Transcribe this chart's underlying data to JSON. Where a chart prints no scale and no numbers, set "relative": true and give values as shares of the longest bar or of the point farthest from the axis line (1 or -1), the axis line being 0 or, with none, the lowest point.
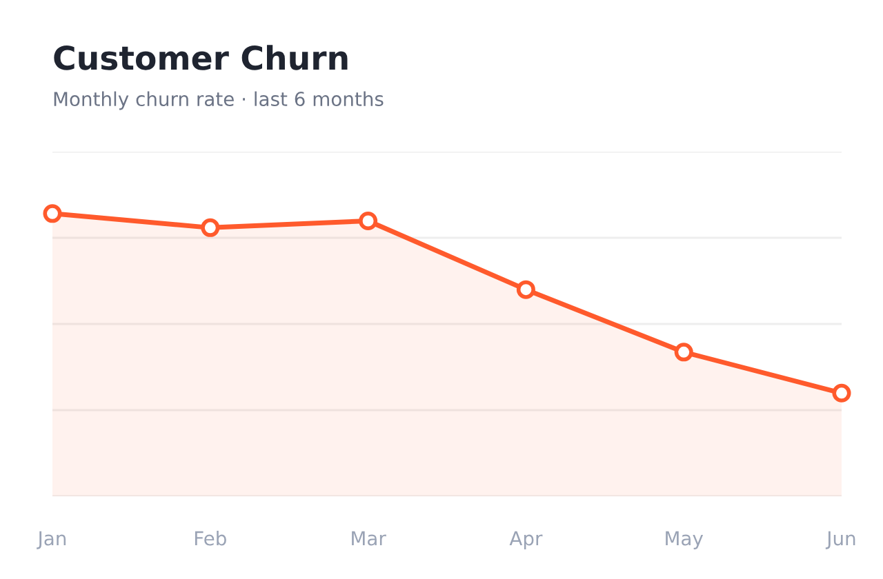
{
  "chart_data": {
    "type": "area",
    "title": "Customer Churn",
    "subtitle": "Monthly churn rate · last 6 months",
    "relative": true,
    "categories": [
      "Jan",
      "Feb",
      "Mar",
      "Apr",
      "May",
      "Jun"
    ],
    "series": [
      {
        "color": "#ff5a2c",
        "values": [
          1,
          0.95,
          0.974,
          0.731,
          0.51,
          0.365
        ]
      }
    ],
    "grid": "y",
    "marker": "circle",
    "line_style": "solid",
    "tick_labels": "x",
    "legend": false
  }
}
